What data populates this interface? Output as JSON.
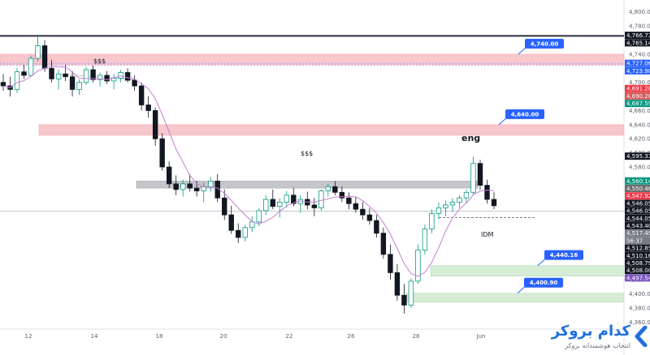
{
  "chart_data": {
    "type": "candlestick",
    "title": "",
    "y_axis": {
      "min": 4350,
      "max": 4810,
      "tick_labels": [
        "4,800.00",
        "4,780.00",
        "4,760.00",
        "4,740.00",
        "4,720.00",
        "4,700.00",
        "4,680.00",
        "4,660.00",
        "4,640.00",
        "4,620.00",
        "4,600.00",
        "4,580.00",
        "4,560.00",
        "4,540.00",
        "4,520.00",
        "4,500.00",
        "4,480.00",
        "4,460.00",
        "4,440.00",
        "4,420.00",
        "4,400.00",
        "4,380.00",
        "4,360.00"
      ]
    },
    "x_axis": {
      "tick_labels": [
        "12",
        "14",
        "18",
        "20",
        "22",
        "26",
        "28",
        "Jun"
      ]
    },
    "price_tags": [
      {
        "label": "4,766.73",
        "value": 4766.73,
        "color": "#131722"
      },
      {
        "label": "4,765.14",
        "value": 4765.14,
        "color": "#131722"
      },
      {
        "label": "4,727.06",
        "value": 4727.06,
        "color": "#2962ff"
      },
      {
        "label": "4,723.90",
        "value": 4723.9,
        "color": "#2962ff"
      },
      {
        "label": "4,691.28",
        "value": 4691.28,
        "color": "#f23645"
      },
      {
        "label": "4,690.28",
        "value": 4690.28,
        "color": "#d15a5a"
      },
      {
        "label": "4,687.59",
        "value": 4687.59,
        "color": "#089981"
      },
      {
        "label": "4,595.33",
        "value": 4595.33,
        "color": "#131722"
      },
      {
        "label": "4,560.14",
        "value": 4560.14,
        "color": "#089981"
      },
      {
        "label": "4,550.46",
        "value": 4550.46,
        "color": "#6b6b6b"
      },
      {
        "label": "4,547.92",
        "value": 4547.92,
        "color": "#f23645"
      },
      {
        "label": "4,546.05",
        "value": 4546.05,
        "color": "#131722"
      },
      {
        "label": "4,546.05",
        "value": 4546.05,
        "color": "#131722"
      },
      {
        "label": "4,544.05",
        "value": 4544.05,
        "color": "#131722"
      },
      {
        "label": "4,543.40",
        "value": 4543.4,
        "color": "#131722"
      },
      {
        "label": "4,517.49",
        "value": 4517.49,
        "color": "#787b86"
      },
      {
        "label": "56:37",
        "value": 4513.0,
        "color": "#787b86"
      },
      {
        "label": "4,512.85",
        "value": 4512.85,
        "color": "#131722"
      },
      {
        "label": "4,510.16",
        "value": 4510.16,
        "color": "#131722"
      },
      {
        "label": "4,508.79",
        "value": 4508.79,
        "color": "#131722"
      },
      {
        "label": "4,508.00",
        "value": 4508.0,
        "color": "#131722"
      },
      {
        "label": "4,497.54",
        "value": 4497.54,
        "color": "#7e57c2"
      }
    ],
    "callouts": [
      {
        "label": "4,740.00",
        "value": 4740
      },
      {
        "label": "4,640.00",
        "value": 4640
      },
      {
        "label": "4,440.16",
        "value": 4440.16
      },
      {
        "label": "4,400.90",
        "value": 4400.9
      }
    ],
    "zones": [
      {
        "kind": "supply",
        "from": 4725,
        "to": 4740
      },
      {
        "kind": "supply",
        "from": 4625,
        "to": 4640
      },
      {
        "kind": "demand",
        "from": 4425,
        "to": 4440
      },
      {
        "kind": "demand",
        "from": 4388,
        "to": 4401
      },
      {
        "kind": "liquidity",
        "from": 4550,
        "to": 4560
      }
    ],
    "annotations": [
      "$$$",
      "$$$",
      "eng",
      "IDM"
    ],
    "candles": [
      [
        4700,
        4712,
        4688,
        4695
      ],
      [
        4695,
        4708,
        4680,
        4690
      ],
      [
        4690,
        4720,
        4685,
        4715
      ],
      [
        4715,
        4725,
        4705,
        4710
      ],
      [
        4710,
        4738,
        4708,
        4734
      ],
      [
        4734,
        4768,
        4730,
        4752
      ],
      [
        4752,
        4760,
        4715,
        4720
      ],
      [
        4720,
        4732,
        4700,
        4705
      ],
      [
        4705,
        4718,
        4690,
        4712
      ],
      [
        4712,
        4725,
        4702,
        4708
      ],
      [
        4708,
        4716,
        4680,
        4690
      ],
      [
        4690,
        4704,
        4682,
        4700
      ],
      [
        4700,
        4722,
        4696,
        4718
      ],
      [
        4718,
        4724,
        4700,
        4704
      ],
      [
        4704,
        4714,
        4694,
        4710
      ],
      [
        4710,
        4716,
        4698,
        4702
      ],
      [
        4702,
        4712,
        4690,
        4706
      ],
      [
        4706,
        4718,
        4700,
        4714
      ],
      [
        4714,
        4720,
        4700,
        4703
      ],
      [
        4703,
        4710,
        4688,
        4695
      ],
      [
        4695,
        4700,
        4660,
        4668
      ],
      [
        4668,
        4680,
        4650,
        4660
      ],
      [
        4660,
        4664,
        4610,
        4620
      ],
      [
        4620,
        4628,
        4575,
        4580
      ],
      [
        4580,
        4588,
        4550,
        4556
      ],
      [
        4556,
        4568,
        4540,
        4548
      ],
      [
        4548,
        4562,
        4538,
        4556
      ],
      [
        4556,
        4570,
        4545,
        4550
      ],
      [
        4550,
        4560,
        4538,
        4546
      ],
      [
        4546,
        4558,
        4530,
        4552
      ],
      [
        4552,
        4566,
        4545,
        4560
      ],
      [
        4560,
        4570,
        4530,
        4536
      ],
      [
        4536,
        4548,
        4505,
        4512
      ],
      [
        4512,
        4525,
        4485,
        4490
      ],
      [
        4490,
        4500,
        4472,
        4480
      ],
      [
        4480,
        4498,
        4474,
        4494
      ],
      [
        4494,
        4510,
        4488,
        4502
      ],
      [
        4502,
        4522,
        4496,
        4518
      ],
      [
        4518,
        4540,
        4512,
        4534
      ],
      [
        4534,
        4548,
        4520,
        4524
      ],
      [
        4524,
        4536,
        4508,
        4530
      ],
      [
        4530,
        4546,
        4522,
        4540
      ],
      [
        4540,
        4550,
        4524,
        4528
      ],
      [
        4528,
        4540,
        4515,
        4534
      ],
      [
        4534,
        4545,
        4520,
        4526
      ],
      [
        4526,
        4536,
        4510,
        4522
      ],
      [
        4522,
        4548,
        4518,
        4546
      ],
      [
        4546,
        4556,
        4538,
        4552
      ],
      [
        4552,
        4560,
        4540,
        4544
      ],
      [
        4544,
        4552,
        4530,
        4536
      ],
      [
        4536,
        4544,
        4520,
        4528
      ],
      [
        4528,
        4538,
        4515,
        4520
      ],
      [
        4520,
        4530,
        4505,
        4512
      ],
      [
        4512,
        4522,
        4498,
        4504
      ],
      [
        4504,
        4512,
        4480,
        4486
      ],
      [
        4486,
        4494,
        4450,
        4456
      ],
      [
        4456,
        4470,
        4420,
        4430
      ],
      [
        4430,
        4442,
        4390,
        4398
      ],
      [
        4398,
        4414,
        4372,
        4384
      ],
      [
        4384,
        4422,
        4380,
        4418
      ],
      [
        4418,
        4470,
        4414,
        4462
      ],
      [
        4462,
        4498,
        4456,
        4492
      ],
      [
        4492,
        4520,
        4486,
        4514
      ],
      [
        4514,
        4530,
        4506,
        4522
      ],
      [
        4522,
        4532,
        4510,
        4526
      ],
      [
        4526,
        4536,
        4516,
        4530
      ],
      [
        4530,
        4540,
        4522,
        4536
      ],
      [
        4536,
        4548,
        4528,
        4544
      ],
      [
        4544,
        4595,
        4540,
        4585
      ],
      [
        4585,
        4590,
        4548,
        4554
      ],
      [
        4554,
        4562,
        4528,
        4534
      ],
      [
        4534,
        4544,
        4520,
        4525
      ]
    ]
  },
  "brand": {
    "name": "کدام بروکر",
    "tagline": "انتخاب هوشمندانه بروکر"
  }
}
